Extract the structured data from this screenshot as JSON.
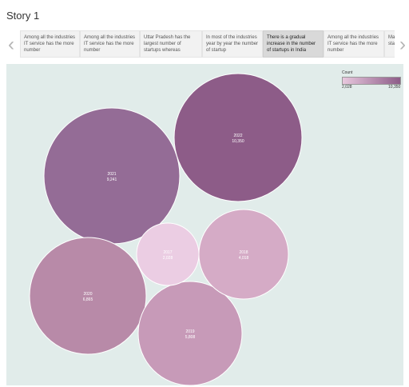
{
  "story": {
    "title": "Story 1"
  },
  "nav": {
    "prev_icon": "chevron-left-icon",
    "next_icon": "chevron-right-icon"
  },
  "tabs": [
    {
      "label": "Among all the industries IT service has the more number",
      "active": false
    },
    {
      "label": "Among all the industries IT service has the more number",
      "active": false
    },
    {
      "label": "Uttar Pradesh has the largest number of startups whereas",
      "active": false
    },
    {
      "label": "In most of the industries year by year the number of startup",
      "active": false
    },
    {
      "label": "There is a gradual increase in the number of startups in India",
      "active": true
    },
    {
      "label": "Among all the industries IT service has the more number",
      "active": false
    },
    {
      "label": "Ma mo sta",
      "active": false
    }
  ],
  "legend": {
    "title": "Count",
    "min": "2,028",
    "max": "10,350"
  },
  "chart_data": {
    "type": "bubble",
    "title": "",
    "items": [
      {
        "year": "2022",
        "count": 10350,
        "count_label": "10,350",
        "color": "#8d5c88"
      },
      {
        "year": "2021",
        "count": 9241,
        "count_label": "9,241",
        "color": "#946c96"
      },
      {
        "year": "2020",
        "count": 6865,
        "count_label": "6,865",
        "color": "#b88aa8"
      },
      {
        "year": "2019",
        "count": 5808,
        "count_label": "5,808",
        "color": "#c79ab8"
      },
      {
        "year": "2018",
        "count": 4018,
        "count_label": "4,018",
        "color": "#d5abc6"
      },
      {
        "year": "2017",
        "count": 2028,
        "count_label": "2,028",
        "color": "#ebcde3"
      }
    ],
    "legend_placement": "top-right"
  }
}
